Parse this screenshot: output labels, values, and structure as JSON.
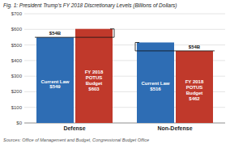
{
  "chart_data": {
    "type": "bar",
    "title": "Fig. 1: President Trump's FY 2018 Discretionary Levels (Billions of Dollars)",
    "source": "Sources: Office of Management and Budget, Congressional Budget Office",
    "categories": [
      "Defense",
      "Non-Defense"
    ],
    "series": [
      {
        "name": "Current Law",
        "color": "#2E6DB4",
        "values": [
          549,
          516
        ],
        "value_labels": [
          "$549",
          "$516"
        ]
      },
      {
        "name": "FY 2018 POTUS Budget",
        "color": "#C0392B",
        "values": [
          603,
          462
        ],
        "value_labels": [
          "$603",
          "$462"
        ]
      }
    ],
    "annotations": [
      {
        "text": "$54B",
        "value": 54
      },
      {
        "text": "$54B",
        "value": 54
      }
    ],
    "ylim": [
      0,
      700
    ],
    "yticks": [
      {
        "value": 0,
        "label": "$0"
      },
      {
        "value": 100,
        "label": "$100"
      },
      {
        "value": 200,
        "label": "$200"
      },
      {
        "value": 300,
        "label": "$300"
      },
      {
        "value": 400,
        "label": "$400"
      },
      {
        "value": 500,
        "label": "$500"
      },
      {
        "value": 600,
        "label": "$600"
      },
      {
        "value": 700,
        "label": "$700"
      }
    ],
    "grid": true,
    "data_labels": true
  }
}
